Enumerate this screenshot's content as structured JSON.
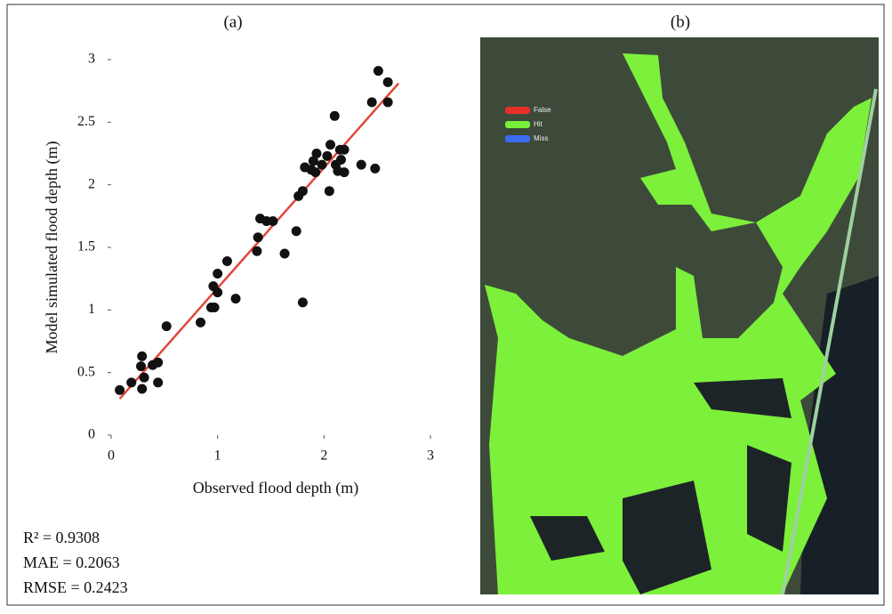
{
  "chart_data": [
    {
      "type": "scatter",
      "title": "(a)",
      "x_label": "Observed flood depth (m)",
      "y_label": "Model simulated flood depth  (m)",
      "x": [
        0.08,
        0.19,
        0.28,
        0.29,
        0.29,
        0.31,
        0.39,
        0.44,
        0.44,
        0.52,
        0.84,
        0.94,
        0.97,
        0.96,
        1.0,
        1.0,
        1.09,
        1.17,
        1.37,
        1.38,
        1.4,
        1.46,
        1.52,
        1.63,
        1.74,
        1.8,
        1.76,
        1.8,
        1.82,
        1.88,
        1.9,
        1.93,
        1.92,
        1.98,
        2.03,
        2.06,
        2.05,
        2.1,
        2.11,
        2.13,
        2.15,
        2.16,
        2.19,
        2.19,
        2.35,
        2.45,
        2.48,
        2.51,
        2.6,
        2.6
      ],
      "values": [
        0.36,
        0.42,
        0.55,
        0.63,
        0.37,
        0.46,
        0.56,
        0.58,
        0.42,
        0.87,
        0.9,
        1.02,
        1.02,
        1.19,
        1.14,
        1.29,
        1.39,
        1.09,
        1.47,
        1.58,
        1.73,
        1.71,
        1.71,
        1.45,
        1.63,
        1.06,
        1.91,
        1.95,
        2.14,
        2.12,
        2.19,
        2.25,
        2.1,
        2.16,
        2.23,
        2.32,
        1.95,
        2.55,
        2.16,
        2.11,
        2.28,
        2.2,
        2.28,
        2.1,
        2.16,
        2.66,
        2.13,
        2.91,
        2.82,
        2.66
      ],
      "color": "#111111",
      "fit": {
        "x": [
          0.08,
          2.7
        ],
        "values": [
          0.29,
          2.81
        ],
        "color": "#e0483a"
      },
      "xlim": [
        0,
        3
      ],
      "xticks": [
        0,
        1,
        2,
        3
      ],
      "ylim": [
        0,
        3
      ],
      "yticks": [
        0,
        0.5,
        1,
        1.5,
        2,
        2.5,
        3
      ],
      "annotations": [
        "R² = 0.9308",
        "MAE = 0.2063",
        "RMSE = 0.2423"
      ]
    },
    {
      "type": "map",
      "title": "(b)",
      "series": [
        {
          "name": "False",
          "color": "#e8302a"
        },
        {
          "name": "Hit",
          "color": "#78f03a"
        },
        {
          "name": "Miss",
          "color": "#3a6cf0"
        }
      ]
    }
  ]
}
